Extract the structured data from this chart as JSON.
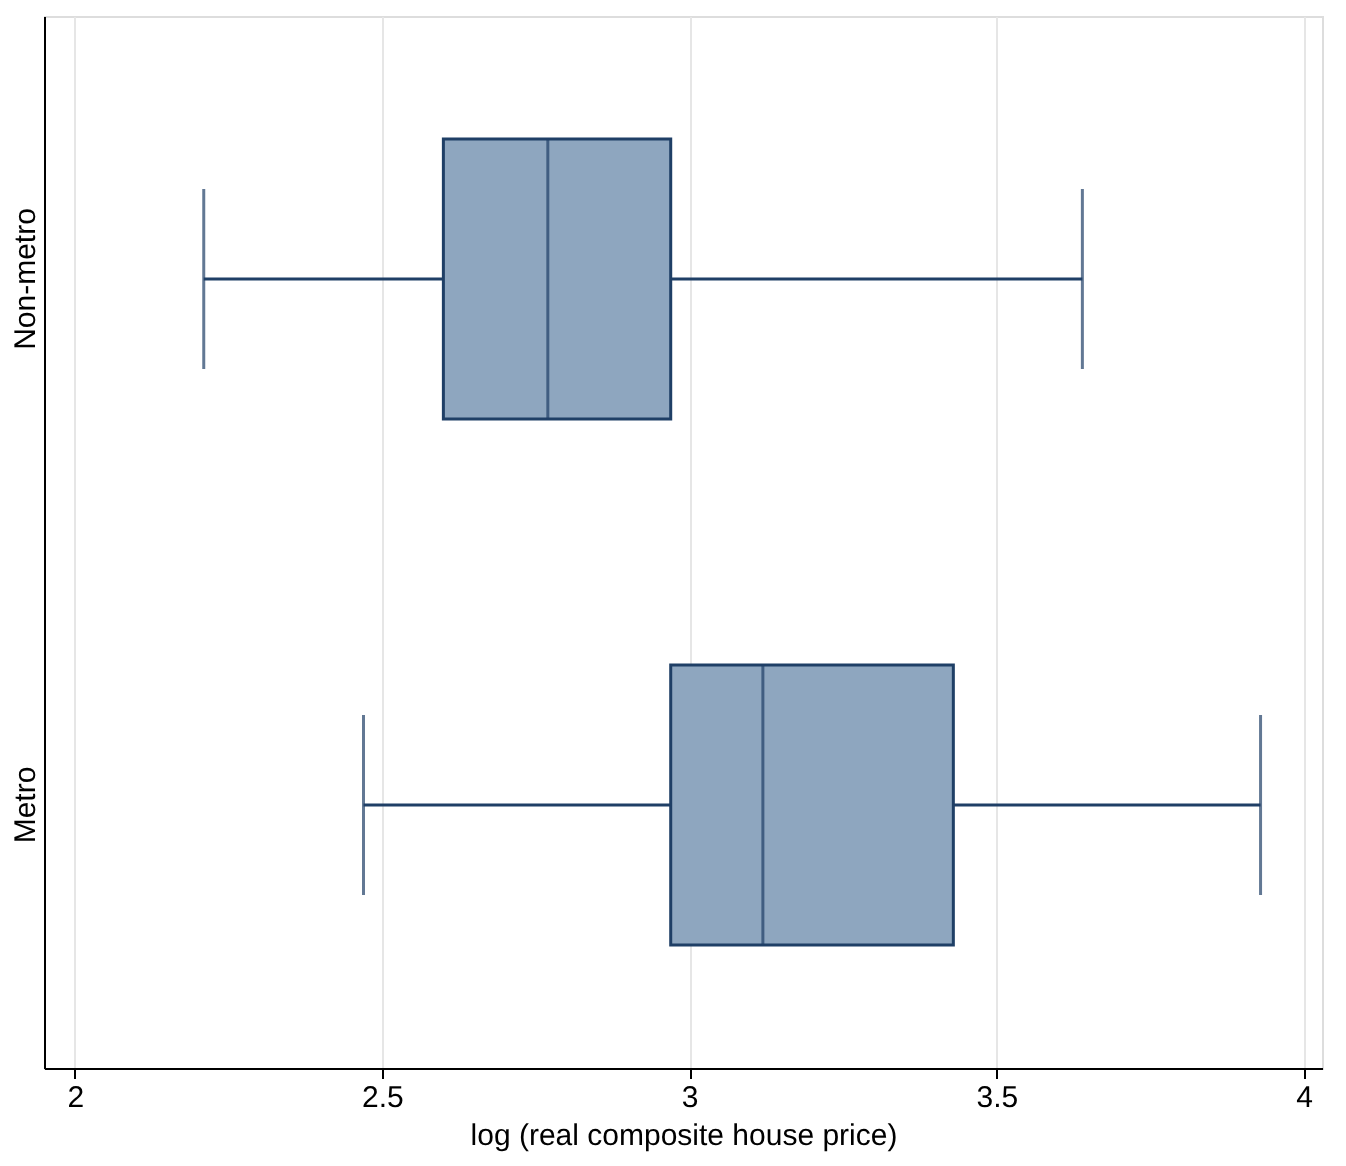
{
  "chart_data": {
    "type": "box",
    "orientation": "horizontal",
    "xlabel": "log (real composite house price)",
    "categories": [
      "Non-metro",
      "Metro"
    ],
    "boxes": [
      {
        "low": 2.21,
        "q1": 2.6,
        "median": 2.77,
        "q3": 2.97,
        "high": 3.64
      },
      {
        "low": 2.47,
        "q1": 2.97,
        "median": 3.12,
        "q3": 3.43,
        "high": 3.93
      }
    ],
    "color": "#8ea6bf",
    "xlim": [
      1.95,
      4.03
    ],
    "xticks": [
      2,
      2.5,
      3,
      3.5,
      4
    ],
    "grid": "x"
  }
}
